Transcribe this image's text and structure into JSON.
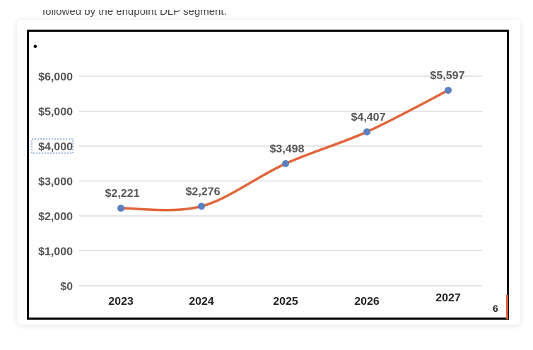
{
  "header": {
    "partial_text": "followed by the endpoint DLP segment."
  },
  "slide": {
    "bullet": "•",
    "page_number": "6"
  },
  "colors": {
    "line": "#e06539",
    "marker": "#5b7fc0",
    "grid": "#c8c8c8",
    "text": "#555555",
    "accent": "#e0583a"
  },
  "chart_data": {
    "type": "line",
    "categories": [
      "2023",
      "2024",
      "2025",
      "2026",
      "2027"
    ],
    "series": [
      {
        "values": [
          2221,
          2276,
          3498,
          4407,
          5597
        ]
      }
    ],
    "data_labels": [
      "$2,221",
      "$2,276",
      "$3,498",
      "$4,407",
      "$5,597"
    ],
    "y_ticks": [
      "$0",
      "$1,000",
      "$2,000",
      "$3,000",
      "$4,000",
      "$5,000",
      "$6,000"
    ],
    "ylim": [
      0,
      6000
    ],
    "grid": true,
    "legend": "none",
    "smooth": true
  }
}
